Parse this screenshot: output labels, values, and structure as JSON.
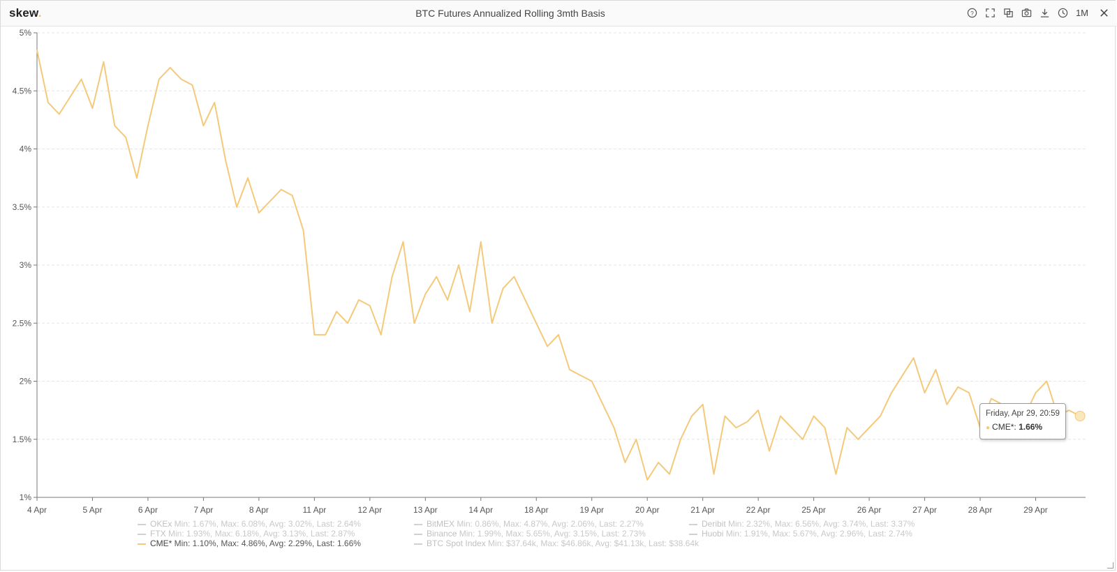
{
  "app": {
    "logo": "skew",
    "logo_dot": "."
  },
  "header": {
    "title": "BTC Futures Annualized Rolling 3mth Basis",
    "range": "1M"
  },
  "toolbar": [
    "help-icon",
    "fullscreen-icon",
    "copy-icon",
    "camera-icon",
    "download-icon",
    "clock-icon",
    "close-icon"
  ],
  "colors": {
    "series": "#f4c97a",
    "grid": "#e6e6e6",
    "axis": "#777777"
  },
  "tooltip": {
    "date": "Friday, Apr 29, 20:59",
    "series": "CME*",
    "value": "1.66%"
  },
  "legend": [
    {
      "name": "OKEx",
      "stats": "Min: 1.67%, Max: 6.08%, Avg: 3.02%, Last: 2.64%",
      "active": false
    },
    {
      "name": "FTX",
      "stats": "Min: 1.93%, Max: 6.18%, Avg: 3.13%, Last: 2.87%",
      "active": false
    },
    {
      "name": "CME*",
      "stats": "Min: 1.10%, Max: 4.86%, Avg: 2.29%, Last: 1.66%",
      "active": true
    },
    {
      "name": "BitMEX",
      "stats": "Min: 0.86%, Max: 4.87%, Avg: 2.06%, Last: 2.27%",
      "active": false
    },
    {
      "name": "Binance",
      "stats": "Min: 1.99%, Max: 5.65%, Avg: 3.15%, Last: 2.73%",
      "active": false
    },
    {
      "name": "BTC Spot Index",
      "stats": "Min: $37.64k, Max: $46.86k, Avg: $41.13k, Last: $38.64k",
      "active": false
    },
    {
      "name": "Deribit",
      "stats": "Min: 2.32%, Max: 6.56%, Avg: 3.74%, Last: 3.37%",
      "active": false
    },
    {
      "name": "Huobi",
      "stats": "Min: 1.91%, Max: 5.67%, Avg: 2.96%, Last: 2.74%",
      "active": false
    }
  ],
  "chart_data": {
    "type": "line",
    "title": "BTC Futures Annualized Rolling 3mth Basis",
    "xlabel": "",
    "ylabel": "",
    "ylim": [
      1,
      5
    ],
    "yticks": [
      "1%",
      "1.5%",
      "2%",
      "2.5%",
      "3%",
      "3.5%",
      "4%",
      "4.5%",
      "5%"
    ],
    "categories": [
      "4 Apr",
      "5 Apr",
      "6 Apr",
      "7 Apr",
      "8 Apr",
      "11 Apr",
      "12 Apr",
      "13 Apr",
      "14 Apr",
      "18 Apr",
      "19 Apr",
      "20 Apr",
      "21 Apr",
      "22 Apr",
      "25 Apr",
      "26 Apr",
      "27 Apr",
      "28 Apr",
      "29 Apr"
    ],
    "grid": true,
    "series": [
      {
        "name": "CME*",
        "x": [
          0,
          0.2,
          0.4,
          0.6,
          0.8,
          1.0,
          1.2,
          1.4,
          1.6,
          1.8,
          2.0,
          2.2,
          2.4,
          2.6,
          2.8,
          3.0,
          3.2,
          3.4,
          3.6,
          3.8,
          4.0,
          4.2,
          4.4,
          4.6,
          4.8,
          5.0,
          5.2,
          5.4,
          5.6,
          5.8,
          6.0,
          6.2,
          6.4,
          6.6,
          6.8,
          7.0,
          7.2,
          7.4,
          7.6,
          7.8,
          8.0,
          8.2,
          8.4,
          8.6,
          8.8,
          9.0,
          9.2,
          9.4,
          9.6,
          9.8,
          10.0,
          10.2,
          10.4,
          10.6,
          10.8,
          11.0,
          11.2,
          11.4,
          11.6,
          11.8,
          12.0,
          12.2,
          12.4,
          12.6,
          12.8,
          13.0,
          13.2,
          13.4,
          13.6,
          13.8,
          14.0,
          14.2,
          14.4,
          14.6,
          14.8,
          15.0,
          15.2,
          15.4,
          15.6,
          15.8,
          16.0,
          16.2,
          16.4,
          16.6,
          16.8,
          17.0,
          17.2,
          17.4,
          17.6,
          17.8,
          18.0,
          18.2,
          18.4,
          18.6,
          18.8
        ],
        "values": [
          4.85,
          4.4,
          4.3,
          4.45,
          4.6,
          4.35,
          4.75,
          4.2,
          4.1,
          3.75,
          4.2,
          4.6,
          4.7,
          4.6,
          4.55,
          4.2,
          4.4,
          3.9,
          3.5,
          3.75,
          3.45,
          3.55,
          3.65,
          3.6,
          3.3,
          2.4,
          2.4,
          2.6,
          2.5,
          2.7,
          2.65,
          2.4,
          2.9,
          3.2,
          2.5,
          2.75,
          2.9,
          2.7,
          3.0,
          2.6,
          3.2,
          2.5,
          2.8,
          2.9,
          2.7,
          2.5,
          2.3,
          2.4,
          2.1,
          2.05,
          2.0,
          1.8,
          1.6,
          1.3,
          1.5,
          1.15,
          1.3,
          1.2,
          1.5,
          1.7,
          1.8,
          1.2,
          1.7,
          1.6,
          1.65,
          1.75,
          1.4,
          1.7,
          1.6,
          1.5,
          1.7,
          1.6,
          1.2,
          1.6,
          1.5,
          1.6,
          1.7,
          1.9,
          2.05,
          2.2,
          1.9,
          2.1,
          1.8,
          1.95,
          1.9,
          1.6,
          1.85,
          1.8,
          1.75,
          1.7,
          1.9,
          2.0,
          1.7,
          1.75,
          1.7
        ],
        "color": "#f4c97a"
      }
    ]
  }
}
